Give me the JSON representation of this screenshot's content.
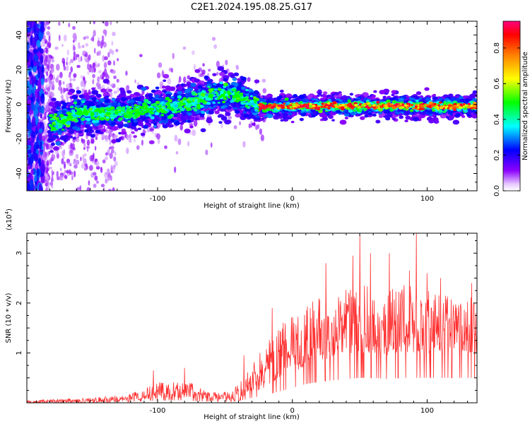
{
  "title": "C2E1.2024.195.08.25.G17",
  "chart_data": [
    {
      "type": "heatmap",
      "xlabel": "Height of straight line (km)",
      "ylabel": "Frequency (Hz)",
      "xlim": [
        -197,
        137
      ],
      "ylim": [
        -50,
        48
      ],
      "xticks": [
        -100,
        0,
        100
      ],
      "yticks": [
        -40,
        -20,
        0,
        20,
        40
      ],
      "colorbar": {
        "label": "Normalized spectral amplitude",
        "range": [
          0,
          0.95
        ],
        "ticks": [
          0.0,
          0.2,
          0.4,
          0.6,
          0.8
        ],
        "colormap": [
          "#ffffff",
          "#8b00ff",
          "#0000ff",
          "#00ffff",
          "#00ff00",
          "#ffff00",
          "#ff8000",
          "#ff0000",
          "#ff0080"
        ]
      },
      "ridge": {
        "x": [
          -197,
          -180,
          -170,
          -160,
          -140,
          -120,
          -100,
          -80,
          -60,
          -45,
          -35,
          -28,
          -20,
          0,
          50,
          100,
          137
        ],
        "frequency": [
          0,
          -12,
          -10,
          -5,
          -5,
          -4,
          -3,
          0,
          5,
          6,
          2,
          0,
          -2,
          -1,
          -1,
          -1,
          -1
        ]
      },
      "grid": false
    },
    {
      "type": "line",
      "xlabel": "Height of straight line (km)",
      "ylabel": "SNR (10 * v/v)",
      "y_multiplier": "(x10",
      "y_multiplier_exp": "4",
      "y_multiplier_close": ")",
      "xlim": [
        -197,
        137
      ],
      "ylim": [
        0,
        3.4
      ],
      "xticks": [
        -100,
        0,
        100
      ],
      "yticks": [
        1,
        2,
        3
      ],
      "series": [
        {
          "color": "#ff3030",
          "envelope": {
            "x": [
              -197,
              -170,
              -150,
              -130,
              -115,
              -105,
              -95,
              -85,
              -75,
              -65,
              -55,
              -45,
              -38,
              -30,
              -20,
              -10,
              0,
              10,
              20,
              30,
              40,
              50,
              60,
              70,
              80,
              90,
              100,
              110,
              120,
              137
            ],
            "low": [
              0.0,
              0.0,
              0.0,
              0.02,
              0.05,
              0.08,
              0.1,
              0.1,
              0.08,
              0.05,
              0.05,
              0.05,
              0.1,
              0.2,
              0.3,
              0.45,
              0.6,
              0.75,
              0.85,
              0.9,
              0.95,
              1.0,
              1.0,
              0.95,
              1.0,
              1.0,
              1.0,
              1.0,
              1.0,
              1.0
            ],
            "high": [
              0.05,
              0.08,
              0.1,
              0.15,
              0.25,
              0.35,
              0.45,
              0.45,
              0.4,
              0.25,
              0.2,
              0.3,
              0.45,
              0.8,
              1.2,
              1.55,
              1.8,
              2.0,
              2.1,
              2.2,
              2.3,
              2.4,
              2.35,
              2.3,
              2.35,
              2.4,
              2.3,
              2.25,
              2.2,
              2.1
            ]
          },
          "peaks": [
            {
              "x": -103,
              "y": 0.65
            },
            {
              "x": -80,
              "y": 0.7
            },
            {
              "x": -36,
              "y": 0.95
            },
            {
              "x": -15,
              "y": 1.9
            },
            {
              "x": 25,
              "y": 2.8
            },
            {
              "x": 45,
              "y": 2.95
            },
            {
              "x": 50,
              "y": 3.35
            },
            {
              "x": 58,
              "y": 3.0
            },
            {
              "x": 72,
              "y": 3.0
            },
            {
              "x": 87,
              "y": 2.65
            },
            {
              "x": 92,
              "y": 3.4
            },
            {
              "x": 100,
              "y": 2.6
            },
            {
              "x": 110,
              "y": 2.5
            },
            {
              "x": 133,
              "y": 2.4
            }
          ],
          "n_samples": 1100
        }
      ],
      "grid": false
    }
  ]
}
